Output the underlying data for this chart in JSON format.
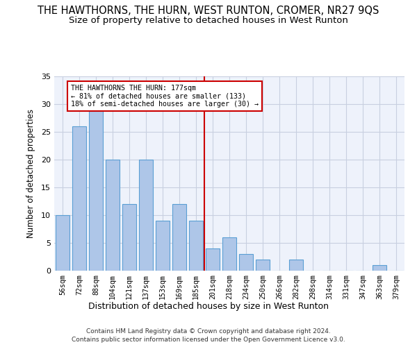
{
  "title": "THE HAWTHORNS, THE HURN, WEST RUNTON, CROMER, NR27 9QS",
  "subtitle": "Size of property relative to detached houses in West Runton",
  "xlabel": "Distribution of detached houses by size in West Runton",
  "ylabel": "Number of detached properties",
  "categories": [
    "56sqm",
    "72sqm",
    "88sqm",
    "104sqm",
    "121sqm",
    "137sqm",
    "153sqm",
    "169sqm",
    "185sqm",
    "201sqm",
    "218sqm",
    "234sqm",
    "250sqm",
    "266sqm",
    "282sqm",
    "298sqm",
    "314sqm",
    "331sqm",
    "347sqm",
    "363sqm",
    "379sqm"
  ],
  "values": [
    10,
    26,
    29,
    20,
    12,
    20,
    9,
    12,
    9,
    4,
    6,
    3,
    2,
    0,
    2,
    0,
    0,
    0,
    0,
    1,
    0
  ],
  "bar_color": "#aec6e8",
  "bar_edge_color": "#5a9fd4",
  "bar_width": 0.8,
  "vline_x": 8.5,
  "vline_color": "#cc0000",
  "ylim": [
    0,
    35
  ],
  "yticks": [
    0,
    5,
    10,
    15,
    20,
    25,
    30,
    35
  ],
  "annotation_line1": "THE HAWTHORNS THE HURN: 177sqm",
  "annotation_line2": "← 81% of detached houses are smaller (133)",
  "annotation_line3": "18% of semi-detached houses are larger (30) →",
  "annotation_box_color": "#cc0000",
  "footer1": "Contains HM Land Registry data © Crown copyright and database right 2024.",
  "footer2": "Contains public sector information licensed under the Open Government Licence v3.0.",
  "bg_color": "#eef2fb",
  "grid_color": "#c8cfe0",
  "title_fontsize": 10.5,
  "subtitle_fontsize": 9.5
}
